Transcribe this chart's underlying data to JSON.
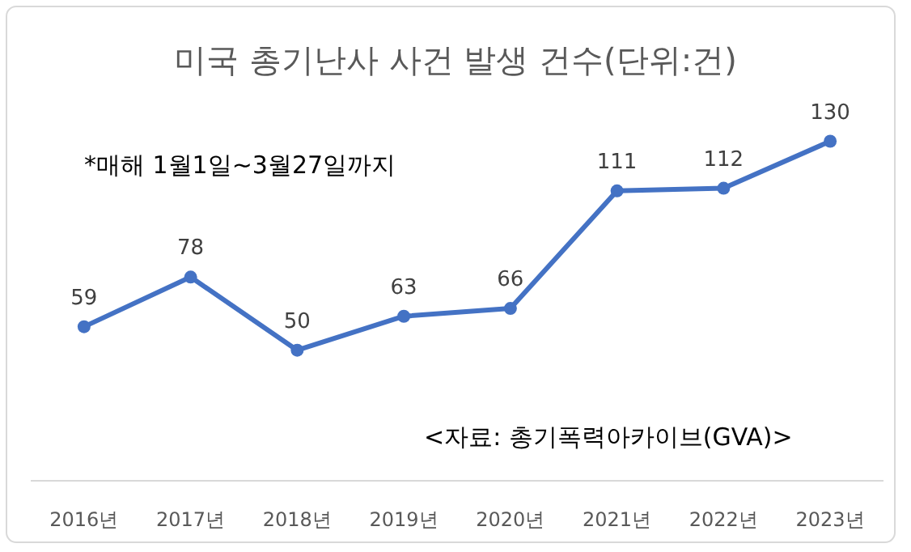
{
  "chart_data": {
    "type": "line",
    "title": "미국 총기난사 사건 발생 건수(단위:건)",
    "categories": [
      "2016년",
      "2017년",
      "2018년",
      "2019년",
      "2020년",
      "2021년",
      "2022년",
      "2023년"
    ],
    "series": [
      {
        "color": "#4472c4",
        "values": [
          59,
          78,
          50,
          63,
          66,
          111,
          112,
          130
        ]
      }
    ],
    "data_labels": true,
    "marker": "circle",
    "line_style": "solid",
    "annotations": [
      "*매해 1월1일~3월27일까지",
      "<자료: 총기폭력아카이브(GVA)>"
    ]
  }
}
